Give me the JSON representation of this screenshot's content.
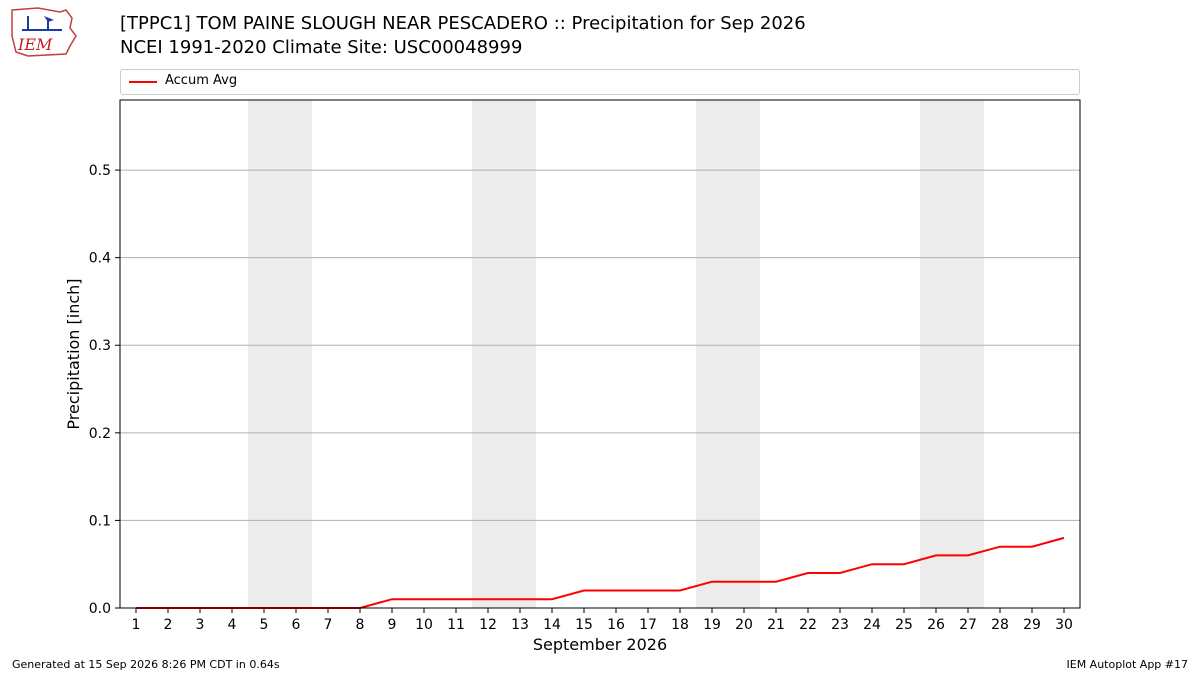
{
  "header": {
    "logo_text": "IEM",
    "title": "[TPPC1] TOM PAINE SLOUGH NEAR PESCADERO :: Precipitation for Sep 2026",
    "subtitle": "NCEI 1991-2020 Climate Site: USC00048999"
  },
  "footer": {
    "left": "Generated at 15 Sep 2026 8:26 PM CDT in 0.64s",
    "right": "IEM Autoplot App #17"
  },
  "colors": {
    "series": "#ff0000",
    "weekend_band": "#ececec",
    "grid": "#b0b0b0"
  },
  "chart_data": {
    "type": "line",
    "title": "[TPPC1] TOM PAINE SLOUGH NEAR PESCADERO :: Precipitation for Sep 2026",
    "subtitle": "NCEI 1991-2020 Climate Site: USC00048999",
    "xlabel": "September 2026",
    "ylabel": "Precipitation [inch]",
    "x": [
      1,
      2,
      3,
      4,
      5,
      6,
      7,
      8,
      9,
      10,
      11,
      12,
      13,
      14,
      15,
      16,
      17,
      18,
      19,
      20,
      21,
      22,
      23,
      24,
      25,
      26,
      27,
      28,
      29,
      30
    ],
    "xticklabels": [
      "1",
      "2",
      "3",
      "4",
      "5",
      "6",
      "7",
      "8",
      "9",
      "10",
      "11",
      "12",
      "13",
      "14",
      "15",
      "16",
      "17",
      "18",
      "19",
      "20",
      "21",
      "22",
      "23",
      "24",
      "25",
      "26",
      "27",
      "28",
      "29",
      "30"
    ],
    "series": [
      {
        "name": "Accum Avg",
        "color": "#ff0000",
        "values": [
          0,
          0,
          0,
          0,
          0,
          0,
          0,
          0,
          0.01,
          0.01,
          0.01,
          0.01,
          0.01,
          0.01,
          0.02,
          0.02,
          0.02,
          0.02,
          0.03,
          0.03,
          0.03,
          0.04,
          0.04,
          0.05,
          0.05,
          0.06,
          0.06,
          0.07,
          0.07,
          0.08
        ]
      }
    ],
    "xlim": [
      0.5,
      30.5
    ],
    "ylim": [
      0,
      0.58
    ],
    "yticks": [
      0.0,
      0.1,
      0.2,
      0.3,
      0.4,
      0.5
    ],
    "yticklabels": [
      "0.0",
      "0.1",
      "0.2",
      "0.3",
      "0.4",
      "0.5"
    ],
    "shaded_days": [
      [
        5,
        6
      ],
      [
        12,
        13
      ],
      [
        19,
        20
      ],
      [
        26,
        27
      ]
    ],
    "grid": "horizontal",
    "legend_position": "top"
  }
}
